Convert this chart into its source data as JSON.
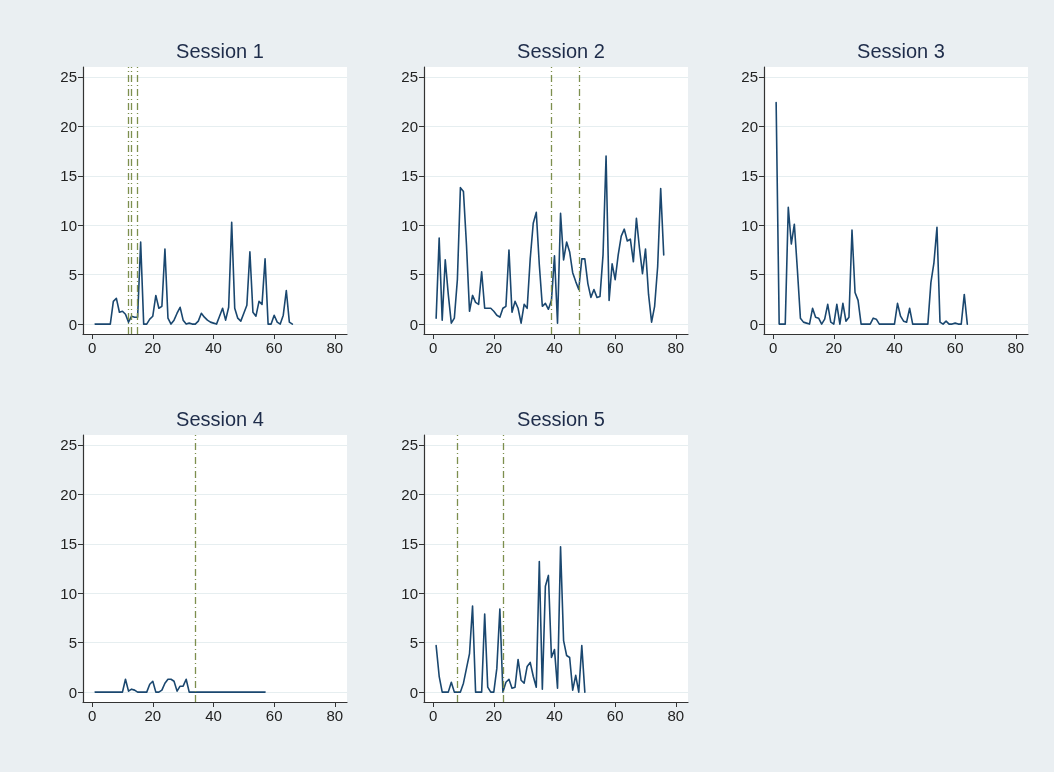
{
  "chart_data": [
    {
      "type": "line",
      "title": "Session 1",
      "xlim": [
        -3,
        84
      ],
      "ylim": [
        -1,
        26
      ],
      "xticks": [
        0,
        20,
        40,
        60,
        80
      ],
      "yticks": [
        0,
        5,
        10,
        15,
        20,
        25
      ],
      "grid": "y",
      "line_style": "solid",
      "x": [
        1,
        2,
        3,
        4,
        5,
        6,
        7,
        8,
        9,
        10,
        11,
        12,
        13,
        14,
        15,
        16,
        17,
        18,
        19,
        20,
        21,
        22,
        23,
        24,
        25,
        26,
        27,
        28,
        29,
        30,
        31,
        32,
        33,
        34,
        35,
        36,
        37,
        38,
        39,
        40,
        41,
        42,
        43,
        44,
        45,
        46,
        47,
        48,
        49,
        50,
        51,
        52,
        53,
        54,
        55,
        56,
        57,
        58,
        59,
        60,
        61,
        62,
        63,
        64,
        65,
        66
      ],
      "series": [
        {
          "color": "#1a476f",
          "values": [
            0,
            0,
            0,
            0,
            0,
            0,
            2.3,
            2.6,
            1.2,
            1.3,
            1.0,
            0.2,
            0.8,
            0.7,
            0.7,
            8.3,
            0,
            0,
            0.5,
            0.8,
            2.9,
            1.6,
            1.8,
            7.6,
            0.6,
            0,
            0.4,
            1.1,
            1.7,
            0.4,
            0,
            0.1,
            0,
            0,
            0.3,
            1.1,
            0.7,
            0.4,
            0.2,
            0.1,
            0,
            0.8,
            1.6,
            0.4,
            1.7,
            10.3,
            1.6,
            0.6,
            0.3,
            1.1,
            1.9,
            7.3,
            1.2,
            0.8,
            2.3,
            2.0,
            6.6,
            0,
            0,
            0.9,
            0.2,
            0,
            0.9,
            3.4,
            0.2,
            0
          ]
        }
      ],
      "ref_lines": [
        {
          "axis": "x",
          "value": 12,
          "color": "#7d8f4e",
          "line_style": "dashed"
        },
        {
          "axis": "x",
          "value": 13,
          "color": "#7d8f4e",
          "line_style": "dashed"
        },
        {
          "axis": "x",
          "value": 15,
          "color": "#7d8f4e",
          "line_style": "dashed"
        }
      ]
    },
    {
      "type": "line",
      "title": "Session 2",
      "xlim": [
        -3,
        84
      ],
      "ylim": [
        -1,
        26
      ],
      "xticks": [
        0,
        20,
        40,
        60,
        80
      ],
      "yticks": [
        0,
        5,
        10,
        15,
        20,
        25
      ],
      "grid": "y",
      "line_style": "solid",
      "x": [
        1,
        2,
        3,
        4,
        5,
        6,
        7,
        8,
        9,
        10,
        11,
        12,
        13,
        14,
        15,
        16,
        17,
        18,
        19,
        20,
        21,
        22,
        23,
        24,
        25,
        26,
        27,
        28,
        29,
        30,
        31,
        32,
        33,
        34,
        35,
        36,
        37,
        38,
        39,
        40,
        41,
        42,
        43,
        44,
        45,
        46,
        47,
        48,
        49,
        50,
        51,
        52,
        53,
        54,
        55,
        56,
        57,
        58,
        59,
        60,
        61,
        62,
        63,
        64,
        65,
        66,
        67,
        68,
        69,
        70,
        71,
        72,
        73,
        74,
        75,
        76
      ],
      "series": [
        {
          "color": "#1a476f",
          "values": [
            0.6,
            8.7,
            0.4,
            6.5,
            3.0,
            0.1,
            0.6,
            4.5,
            13.8,
            13.4,
            8.0,
            1.3,
            2.9,
            2.2,
            2.0,
            5.3,
            1.6,
            1.6,
            1.6,
            1.3,
            0.9,
            0.7,
            1.6,
            1.8,
            7.5,
            1.2,
            2.3,
            1.6,
            0.1,
            2.0,
            1.6,
            6.6,
            10.2,
            11.3,
            6.0,
            1.8,
            2.1,
            1.5,
            2.4,
            6.9,
            0.1,
            11.2,
            6.5,
            8.3,
            7.3,
            5.2,
            4.3,
            3.5,
            6.6,
            6.6,
            4.1,
            2.7,
            3.5,
            2.7,
            2.8,
            7.0,
            17.0,
            2.4,
            6.1,
            4.5,
            7.0,
            8.9,
            9.6,
            8.4,
            8.6,
            6.3,
            10.7,
            7.7,
            5.1,
            7.6,
            3.0,
            0.2,
            1.8,
            5.8,
            13.7,
            7.0
          ]
        }
      ],
      "ref_lines": [
        {
          "axis": "x",
          "value": 39,
          "color": "#7d8f4e",
          "line_style": "dashed"
        },
        {
          "axis": "x",
          "value": 48,
          "color": "#7d8f4e",
          "line_style": "dashed"
        }
      ]
    },
    {
      "type": "line",
      "title": "Session 3",
      "xlim": [
        -3,
        84
      ],
      "ylim": [
        -1,
        26
      ],
      "xticks": [
        0,
        20,
        40,
        60,
        80
      ],
      "yticks": [
        0,
        5,
        10,
        15,
        20,
        25
      ],
      "grid": "y",
      "line_style": "solid",
      "x": [
        1,
        2,
        3,
        4,
        5,
        6,
        7,
        8,
        9,
        10,
        11,
        12,
        13,
        14,
        15,
        16,
        17,
        18,
        19,
        20,
        21,
        22,
        23,
        24,
        25,
        26,
        27,
        28,
        29,
        30,
        31,
        32,
        33,
        34,
        35,
        36,
        37,
        38,
        39,
        40,
        41,
        42,
        43,
        44,
        45,
        46,
        47,
        48,
        49,
        50,
        51,
        52,
        53,
        54,
        55,
        56,
        57,
        58,
        59,
        60,
        61,
        62,
        63,
        64
      ],
      "series": [
        {
          "color": "#1a476f",
          "values": [
            22.4,
            0,
            0,
            0,
            11.8,
            8.1,
            10.1,
            5.5,
            0.6,
            0.2,
            0.1,
            0,
            1.6,
            0.7,
            0.6,
            0,
            0.5,
            2.0,
            0.2,
            0,
            2.0,
            0,
            2.1,
            0.3,
            0.7,
            9.5,
            3.2,
            2.4,
            0,
            0,
            0,
            0,
            0.6,
            0.5,
            0,
            0,
            0,
            0,
            0,
            0,
            2.1,
            0.8,
            0.3,
            0.2,
            1.6,
            0,
            0,
            0,
            0,
            0,
            0,
            4.2,
            6.2,
            9.8,
            0.2,
            0,
            0.3,
            0,
            0,
            0.1,
            0,
            0,
            3.0,
            0
          ]
        }
      ]
    },
    {
      "type": "line",
      "title": "Session 4",
      "xlim": [
        -3,
        84
      ],
      "ylim": [
        -1,
        26
      ],
      "xticks": [
        0,
        20,
        40,
        60,
        80
      ],
      "yticks": [
        0,
        5,
        10,
        15,
        20,
        25
      ],
      "grid": "y",
      "line_style": "solid",
      "x": [
        1,
        2,
        3,
        4,
        5,
        6,
        7,
        8,
        9,
        10,
        11,
        12,
        13,
        14,
        15,
        16,
        17,
        18,
        19,
        20,
        21,
        22,
        23,
        24,
        25,
        26,
        27,
        28,
        29,
        30,
        31,
        32,
        33,
        34,
        35,
        36,
        37,
        38,
        39,
        40,
        41,
        42,
        43,
        44,
        45,
        46,
        47,
        48,
        49,
        50,
        51,
        52,
        53,
        54,
        55,
        56,
        57
      ],
      "series": [
        {
          "color": "#1a476f",
          "values": [
            0,
            0,
            0,
            0,
            0,
            0,
            0,
            0,
            0,
            0,
            1.3,
            0.1,
            0.3,
            0.2,
            0,
            0,
            0,
            0,
            0.8,
            1.1,
            0,
            0,
            0.2,
            0.9,
            1.3,
            1.3,
            1.1,
            0.1,
            0.6,
            0.6,
            1.3,
            0,
            0,
            0,
            0,
            0,
            0,
            0,
            0,
            0,
            0,
            0,
            0,
            0,
            0,
            0,
            0,
            0,
            0,
            0,
            0,
            0,
            0,
            0,
            0,
            0,
            0
          ]
        }
      ],
      "ref_lines": [
        {
          "axis": "x",
          "value": 34,
          "color": "#7d8f4e",
          "line_style": "dashed"
        }
      ]
    },
    {
      "type": "line",
      "title": "Session 5",
      "xlim": [
        -3,
        84
      ],
      "ylim": [
        -1,
        26
      ],
      "xticks": [
        0,
        20,
        40,
        60,
        80
      ],
      "yticks": [
        0,
        5,
        10,
        15,
        20,
        25
      ],
      "grid": "y",
      "line_style": "solid",
      "x": [
        1,
        2,
        3,
        4,
        5,
        6,
        7,
        8,
        9,
        10,
        11,
        12,
        13,
        14,
        15,
        16,
        17,
        18,
        19,
        20,
        21,
        22,
        23,
        24,
        25,
        26,
        27,
        28,
        29,
        30,
        31,
        32,
        33,
        34,
        35,
        36,
        37,
        38,
        39,
        40,
        41,
        42,
        43,
        44,
        45,
        46,
        47,
        48,
        49,
        50
      ],
      "series": [
        {
          "color": "#1a476f",
          "values": [
            4.7,
            1.6,
            0,
            0,
            0,
            1.0,
            0,
            0,
            0,
            0.9,
            2.4,
            3.9,
            8.7,
            0,
            0,
            0,
            7.9,
            0.5,
            0,
            0,
            2.4,
            8.4,
            0,
            1.0,
            1.3,
            0.4,
            0.5,
            3.3,
            1.2,
            0.9,
            2.6,
            3.0,
            1.6,
            0.5,
            13.2,
            0.3,
            10.7,
            11.8,
            3.5,
            4.3,
            0.4,
            14.7,
            5.2,
            3.7,
            3.5,
            0.2,
            1.7,
            0,
            4.7,
            0
          ]
        }
      ],
      "ref_lines": [
        {
          "axis": "x",
          "value": 8,
          "color": "#7d8f4e",
          "line_style": "dashed"
        },
        {
          "axis": "x",
          "value": 23,
          "color": "#7d8f4e",
          "line_style": "dashed"
        }
      ]
    }
  ]
}
